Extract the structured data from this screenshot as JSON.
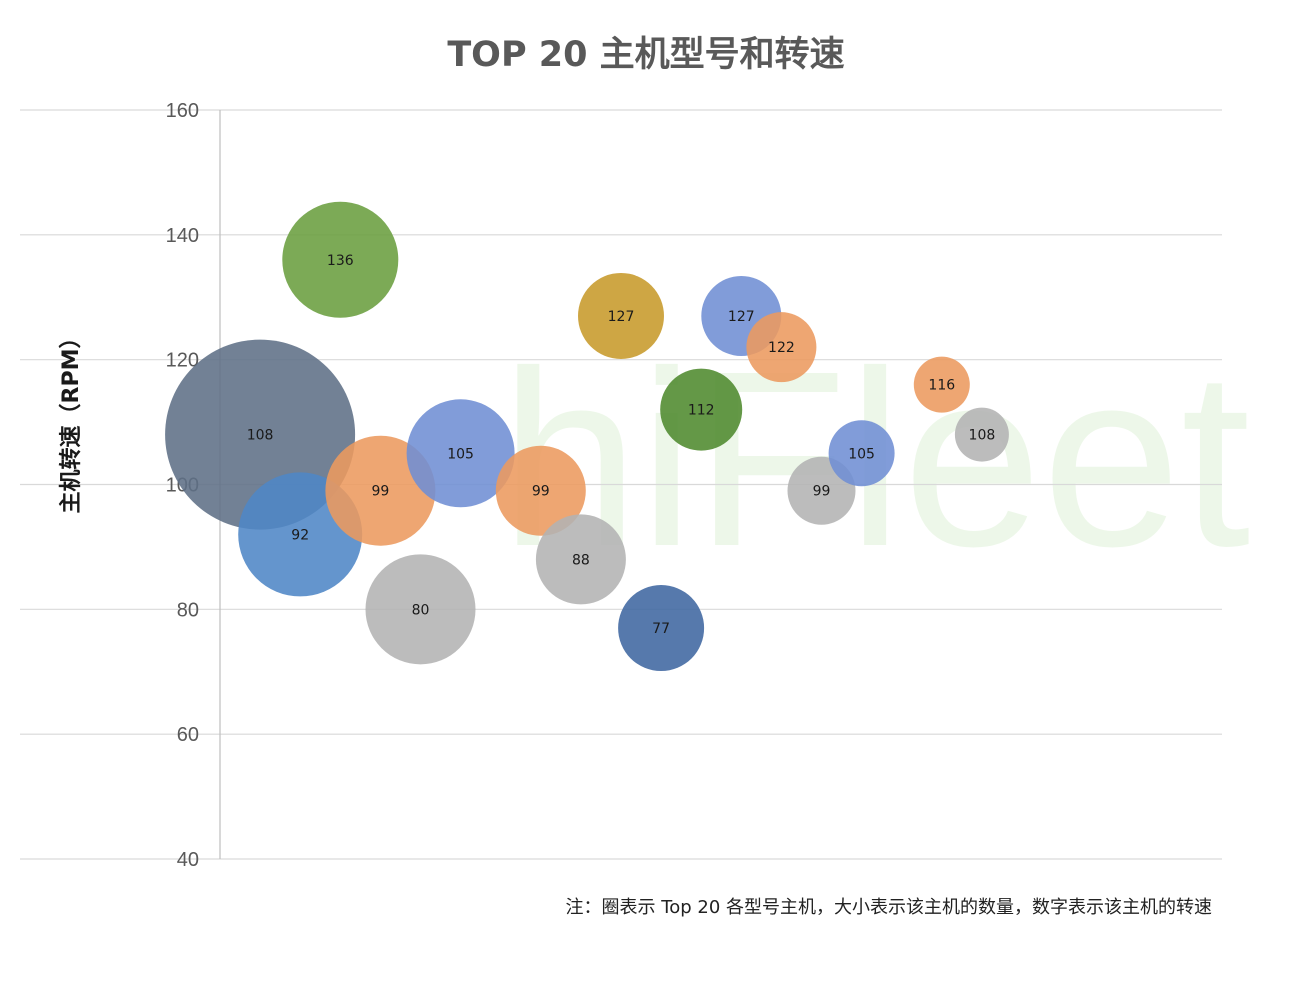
{
  "chart_data": {
    "type": "scatter",
    "title": "TOP 20 主机型号和转速",
    "ylabel": "主机转速（RPM）",
    "xlabel": "",
    "ylim": [
      40,
      160
    ],
    "yticks": [
      40,
      60,
      80,
      100,
      120,
      140,
      160
    ],
    "grid": true,
    "legend": "none",
    "note": "注：圈表示 Top 20 各型号主机，大小表示该主机的数量，数字表示该主机的转速",
    "watermark": "hiFleet",
    "points": [
      {
        "x": 1,
        "y": 108,
        "label": "108",
        "size": 95,
        "color": "#5f6f86"
      },
      {
        "x": 2,
        "y": 92,
        "label": "92",
        "size": 62,
        "color": "#4f86c6"
      },
      {
        "x": 3,
        "y": 136,
        "label": "136",
        "size": 58,
        "color": "#6a9e3f"
      },
      {
        "x": 4,
        "y": 99,
        "label": "99",
        "size": 55,
        "color": "#ec9a5e"
      },
      {
        "x": 5,
        "y": 80,
        "label": "80",
        "size": 55,
        "color": "#b3b3b3"
      },
      {
        "x": 6,
        "y": 105,
        "label": "105",
        "size": 54,
        "color": "#6f8ed4"
      },
      {
        "x": 8,
        "y": 99,
        "label": "99",
        "size": 45,
        "color": "#ec9a5e"
      },
      {
        "x": 9,
        "y": 88,
        "label": "88",
        "size": 45,
        "color": "#b3b3b3"
      },
      {
        "x": 10,
        "y": 127,
        "label": "127",
        "size": 43,
        "color": "#c79a2a"
      },
      {
        "x": 11,
        "y": 77,
        "label": "77",
        "size": 43,
        "color": "#3f66a0"
      },
      {
        "x": 12,
        "y": 112,
        "label": "112",
        "size": 41,
        "color": "#4f8a2e"
      },
      {
        "x": 13,
        "y": 127,
        "label": "127",
        "size": 40,
        "color": "#6f8ed4"
      },
      {
        "x": 14,
        "y": 122,
        "label": "122",
        "size": 35,
        "color": "#ec9a5e"
      },
      {
        "x": 15,
        "y": 99,
        "label": "99",
        "size": 34,
        "color": "#b3b3b3"
      },
      {
        "x": 16,
        "y": 105,
        "label": "105",
        "size": 33,
        "color": "#6f8ed4"
      },
      {
        "x": 18,
        "y": 116,
        "label": "116",
        "size": 28,
        "color": "#ec9a5e"
      },
      {
        "x": 19,
        "y": 108,
        "label": "108",
        "size": 27,
        "color": "#b3b3b3"
      }
    ]
  }
}
